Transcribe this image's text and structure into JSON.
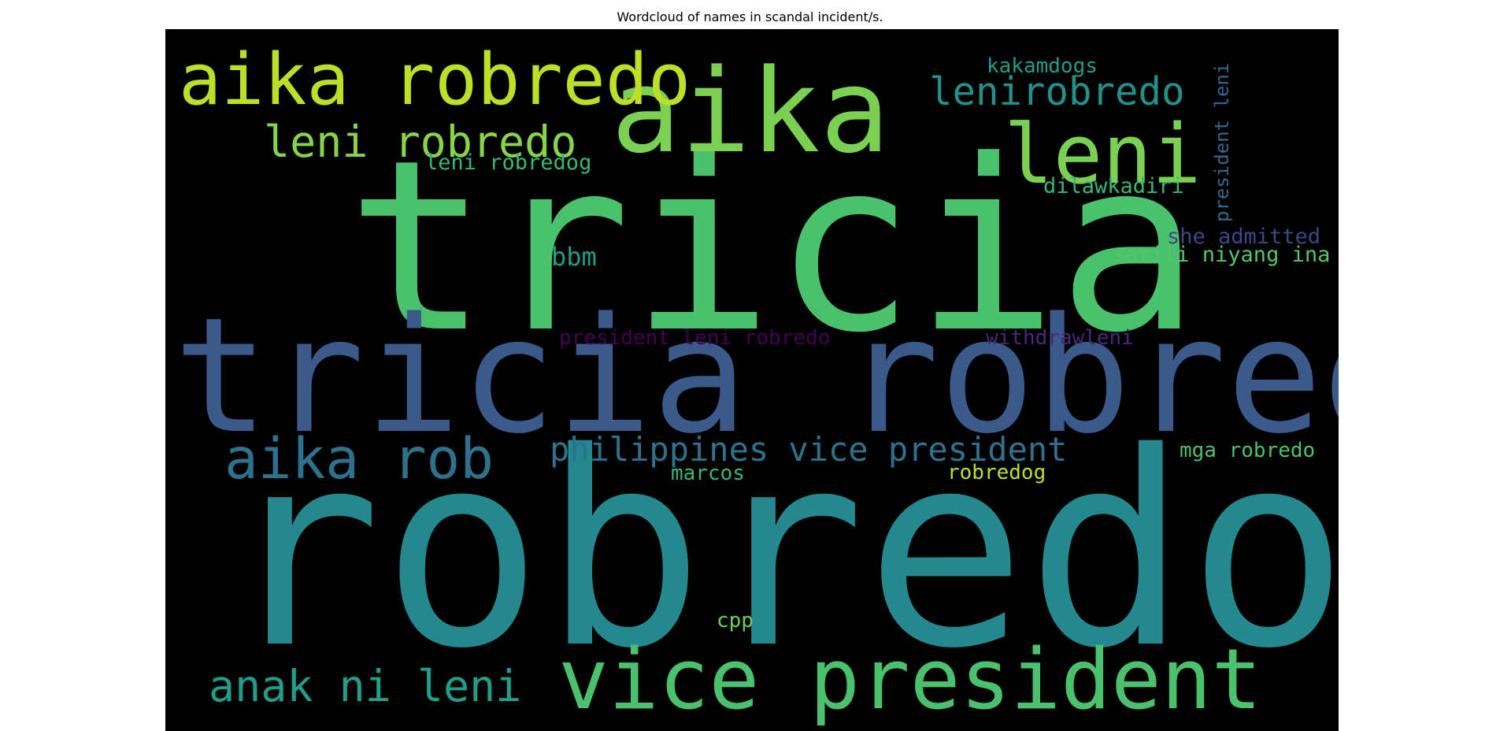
{
  "chart_data": {
    "type": "wordcloud",
    "title": "Wordcloud of names in scandal incident/s.",
    "background": "#000000",
    "words": [
      {
        "text": "robredo",
        "weight": 1.0,
        "color": "#23898e"
      },
      {
        "text": "tricia",
        "weight": 0.9,
        "color": "#4ac16d"
      },
      {
        "text": "tricia robredo",
        "weight": 0.62,
        "color": "#3b5a8c"
      },
      {
        "text": "aika",
        "weight": 0.55,
        "color": "#7ad151"
      },
      {
        "text": "leni",
        "weight": 0.43,
        "color": "#7ad151"
      },
      {
        "text": "vice president",
        "weight": 0.43,
        "color": "#4ac16d"
      },
      {
        "text": "aika robredo",
        "weight": 0.37,
        "color": "#bddf26"
      },
      {
        "text": "aika rob",
        "weight": 0.31,
        "color": "#2c728e"
      },
      {
        "text": "leni robredo",
        "weight": 0.24,
        "color": "#86d549"
      },
      {
        "text": "anak ni leni",
        "weight": 0.24,
        "color": "#1f9e89"
      },
      {
        "text": "lenirobredo",
        "weight": 0.21,
        "color": "#21918c"
      },
      {
        "text": "philippines vice president",
        "weight": 0.2,
        "color": "#2c728e"
      },
      {
        "text": "bbm",
        "weight": 0.14,
        "color": "#1f9e89"
      },
      {
        "text": "president leni",
        "weight": 0.13,
        "color": "#31688e"
      },
      {
        "text": "leni robredog",
        "weight": 0.12,
        "color": "#35b779"
      },
      {
        "text": "dilawkadiri",
        "weight": 0.12,
        "color": "#35b779"
      },
      {
        "text": "she admitted",
        "weight": 0.12,
        "color": "#414487"
      },
      {
        "text": "sarili niyang ina",
        "weight": 0.12,
        "color": "#54c568"
      },
      {
        "text": "president leni robredo",
        "weight": 0.12,
        "color": "#440154"
      },
      {
        "text": "withdrawleni",
        "weight": 0.12,
        "color": "#482878"
      },
      {
        "text": "mga robredo",
        "weight": 0.12,
        "color": "#4ac16d"
      },
      {
        "text": "robredog",
        "weight": 0.12,
        "color": "#bddf26"
      },
      {
        "text": "marcos",
        "weight": 0.12,
        "color": "#35b779"
      },
      {
        "text": "cpp",
        "weight": 0.12,
        "color": "#6ece58"
      },
      {
        "text": "kakamdogs",
        "weight": 0.12,
        "color": "#1f9e89"
      }
    ]
  }
}
